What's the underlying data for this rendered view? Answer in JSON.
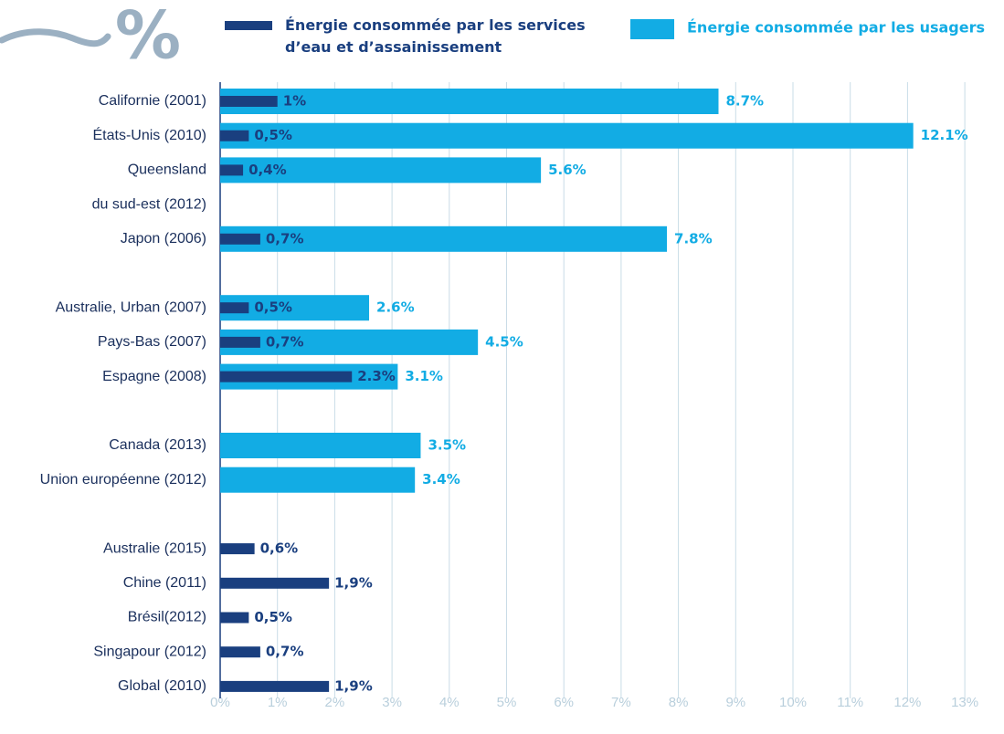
{
  "chart_data": {
    "type": "bar",
    "orientation": "horizontal",
    "unit_symbol": "%",
    "categories": [
      "Californie (2001)",
      "États-Unis (2010)",
      "Queensland\ndu sud-est (2012)",
      null,
      "Japon (2006)",
      null,
      "Australie, Urban (2007)",
      "Pays-Bas (2007)",
      "Espagne (2008)",
      null,
      "Canada (2013)",
      "Union européenne (2012)",
      null,
      "Australie (2015)",
      "Chine (2011)",
      "Brésil(2012)",
      "Singapour (2012)",
      "Global (2010)"
    ],
    "series": [
      {
        "name": "Énergie consommée par les usagers",
        "color": "#12ace4",
        "values": [
          8.7,
          12.1,
          5.6,
          null,
          7.8,
          null,
          2.6,
          4.5,
          3.1,
          null,
          3.5,
          3.4,
          null,
          null,
          null,
          null,
          null,
          null
        ],
        "value_labels": [
          "8.7%",
          "12.1%",
          "5.6%",
          null,
          "7.8%",
          null,
          "2.6%",
          "4.5%",
          "3.1%",
          null,
          "3.5%",
          "3.4%",
          null,
          null,
          null,
          null,
          null,
          null
        ]
      },
      {
        "name": "Énergie consommée par les services\nd’eau et d’assainissement",
        "color": "#1a3f7f",
        "values": [
          1,
          0.5,
          0.4,
          null,
          0.7,
          null,
          0.5,
          0.7,
          2.3,
          null,
          null,
          null,
          null,
          0.6,
          1.9,
          0.5,
          0.7,
          1.9
        ],
        "value_labels": [
          "1%",
          "0,5%",
          "0,4%",
          null,
          "0,7%",
          null,
          "0,5%",
          "0,7%",
          "2.3%",
          null,
          null,
          null,
          null,
          "0,6%",
          "1,9%",
          "0,5%",
          "0,7%",
          "1,9%"
        ]
      }
    ],
    "xlim": [
      0,
      13
    ],
    "xticks": [
      {
        "value": 0,
        "label": "0%"
      },
      {
        "value": 1,
        "label": "1%"
      },
      {
        "value": 2,
        "label": "2%"
      },
      {
        "value": 3,
        "label": "3%"
      },
      {
        "value": 4,
        "label": "4%"
      },
      {
        "value": 5,
        "label": "5%"
      },
      {
        "value": 6,
        "label": "6%"
      },
      {
        "value": 7,
        "label": "7%"
      },
      {
        "value": 8,
        "label": "8%"
      },
      {
        "value": 9,
        "label": "9%"
      },
      {
        "value": 10,
        "label": "10%"
      },
      {
        "value": 11,
        "label": "11%"
      },
      {
        "value": 12,
        "label": "12%"
      },
      {
        "value": 13,
        "label": "13%"
      }
    ],
    "grid": true
  }
}
